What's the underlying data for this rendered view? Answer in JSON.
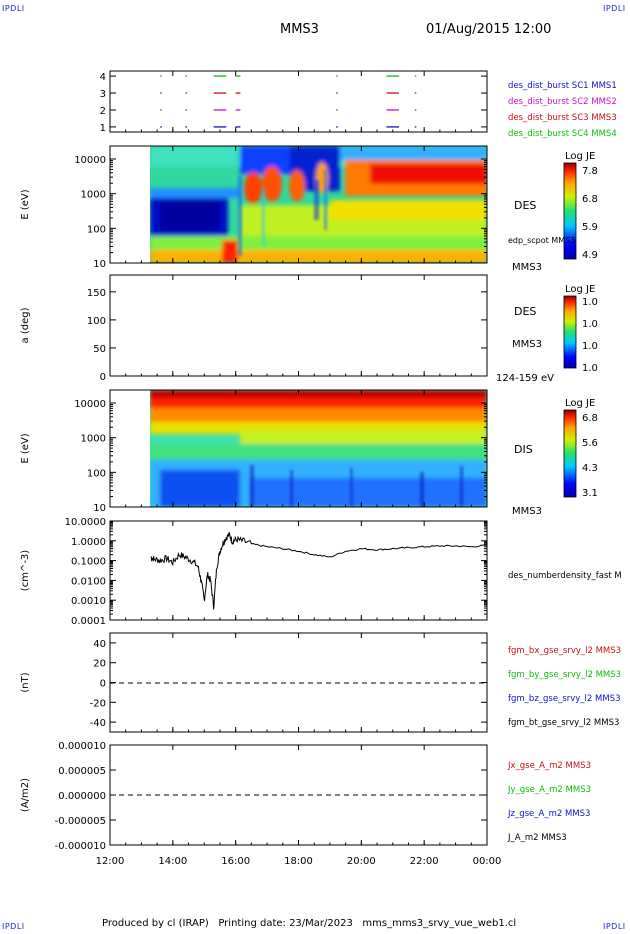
{
  "corner_tag": "IPDLI",
  "header": {
    "spacecraft": "MMS3",
    "datetime": "01/Aug/2015 12:00"
  },
  "footer": {
    "text": "Produced by cl (IRAP)   Printing date: 23/Mar/2023   mms_mms3_srvy_vue_web1.cl"
  },
  "time_axis": {
    "ticks": [
      "12:00",
      "14:00",
      "16:00",
      "18:00",
      "20:00",
      "22:00",
      "00:00"
    ]
  },
  "chart_data": [
    {
      "type": "scatter",
      "id": "burst",
      "ylim": [
        0.7,
        4.3
      ],
      "yticks": [
        "1",
        "2",
        "3",
        "4"
      ],
      "legend": [
        {
          "label": "des_dist_burst SC1 MMS1",
          "color": "#1010cc"
        },
        {
          "label": "des_dist_burst SC2 MMS2",
          "color": "#cc10cc"
        },
        {
          "label": "des_dist_burst SC3 MMS3",
          "color": "#cc1010"
        },
        {
          "label": "des_dist_burst SC4 MMS4",
          "color": "#10bb10"
        }
      ],
      "segments_hours": [
        [
          13.6,
          13.65
        ],
        [
          14.4,
          14.45
        ],
        [
          15.3,
          15.7
        ],
        [
          16.0,
          16.15
        ],
        [
          19.2,
          19.25
        ],
        [
          20.8,
          21.2
        ],
        [
          21.7,
          21.75
        ]
      ]
    },
    {
      "type": "heatmap",
      "id": "des-energy",
      "ylabel": "E (eV)",
      "log_y": true,
      "yticks": [
        "10",
        "100",
        "1000",
        "10000"
      ],
      "side_label": "DES",
      "sub_label": "edp_scpot MMS3",
      "spacecraft": "MMS3",
      "colorbar": {
        "title": "Log JE",
        "ticks": [
          "7.8",
          "6.8",
          "5.9",
          "4.9"
        ]
      }
    },
    {
      "type": "heatmap",
      "id": "des-pitch",
      "ylabel": "a (deg)",
      "yticks": [
        "0",
        "50",
        "100",
        "150"
      ],
      "side_label": "DES",
      "spacecraft": "MMS3",
      "energy_range": "124-159 eV",
      "colorbar": {
        "title": "Log JE",
        "ticks": [
          "1.0",
          "1.0",
          "1.0",
          "1.0"
        ]
      }
    },
    {
      "type": "heatmap",
      "id": "dis-energy",
      "ylabel": "E (eV)",
      "log_y": true,
      "yticks": [
        "10",
        "100",
        "1000",
        "10000"
      ],
      "side_label": "DIS",
      "spacecraft": "MMS3",
      "colorbar": {
        "title": "Log JE",
        "ticks": [
          "6.8",
          "5.6",
          "4.3",
          "3.1"
        ]
      }
    },
    {
      "type": "line",
      "id": "density",
      "ylabel": "(cm^-3)",
      "log_y": true,
      "yticks": [
        "10.0000",
        "1.0000",
        "0.1000",
        "0.0100",
        "0.0010",
        "0.0001"
      ],
      "legend": [
        {
          "label": "des_numberdensity_fast M",
          "color": "#000000"
        }
      ],
      "x_hours": [
        13.3,
        13.4,
        13.6,
        13.8,
        14.0,
        14.2,
        14.4,
        14.6,
        14.8,
        14.9,
        15.0,
        15.1,
        15.2,
        15.3,
        15.4,
        15.5,
        15.6,
        15.7,
        15.8,
        15.9,
        16.0,
        16.2,
        16.5,
        17.0,
        17.5,
        18.0,
        18.5,
        19.0,
        19.5,
        20.0,
        20.5,
        21.0,
        21.5,
        22.0,
        22.5,
        23.0,
        23.5,
        24.0
      ],
      "values": [
        0.15,
        0.12,
        0.1,
        0.13,
        0.08,
        0.2,
        0.15,
        0.1,
        0.05,
        0.01,
        0.001,
        0.02,
        0.01,
        0.0005,
        0.05,
        0.3,
        0.8,
        1.5,
        2.0,
        0.9,
        1.2,
        1.0,
        0.7,
        0.5,
        0.4,
        0.3,
        0.2,
        0.15,
        0.3,
        0.4,
        0.35,
        0.4,
        0.45,
        0.5,
        0.55,
        0.55,
        0.5,
        0.6
      ]
    },
    {
      "type": "line",
      "id": "magnetic",
      "ylabel": "(nT)",
      "yticks": [
        "40",
        "20",
        "0",
        "-20",
        "-40"
      ],
      "ylim": [
        -50,
        50
      ],
      "legend": [
        {
          "label": "fgm_bx_gse_srvy_l2 MMS3",
          "color": "#cc1010"
        },
        {
          "label": "fgm_by_gse_srvy_l2 MMS3",
          "color": "#10bb10"
        },
        {
          "label": "fgm_bz_gse_srvy_l2 MMS3",
          "color": "#1010cc"
        },
        {
          "label": "fgm_bt_gse_srvy_l2 MMS3",
          "color": "#000000"
        }
      ],
      "zero_line": true
    },
    {
      "type": "line",
      "id": "current",
      "ylabel": "(A/m2)",
      "yticks": [
        "0.000010",
        "0.000005",
        "0.000000",
        "-0.000005",
        "-0.000010"
      ],
      "ylim": [
        -1e-05,
        1e-05
      ],
      "legend": [
        {
          "label": "Jx_gse_A_m2 MMS3",
          "color": "#cc1010"
        },
        {
          "label": "Jy_gse_A_m2 MMS3",
          "color": "#10bb10"
        },
        {
          "label": "Jz_gse_A_m2 MMS3",
          "color": "#1010cc"
        },
        {
          "label": "J_A_m2 MMS3",
          "color": "#000000"
        }
      ],
      "zero_line": true
    }
  ]
}
